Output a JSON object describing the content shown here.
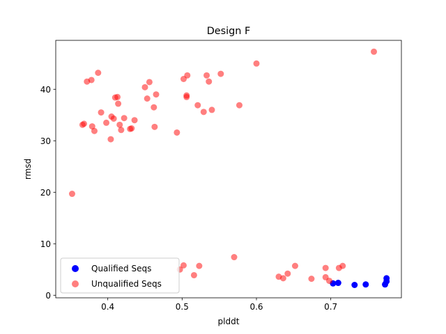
{
  "chart_data": {
    "type": "scatter",
    "title": "Design F",
    "xlabel": "plddt",
    "ylabel": "rmsd",
    "xlim": [
      0.33,
      0.795
    ],
    "ylim": [
      -0.5,
      49.5
    ],
    "xticks": [
      0.4,
      0.5,
      0.6,
      0.7
    ],
    "xtick_labels": [
      "0.4",
      "0.5",
      "0.6",
      "0.7"
    ],
    "yticks": [
      0,
      10,
      20,
      30,
      40
    ],
    "ytick_labels": [
      "0",
      "10",
      "20",
      "30",
      "40"
    ],
    "grid": false,
    "legend_position": "lower-left",
    "series": [
      {
        "name": "Qualified Seqs",
        "color": "#0000ff",
        "alpha": 1.0,
        "points": [
          [
            0.703,
            2.3
          ],
          [
            0.71,
            2.4
          ],
          [
            0.732,
            2.0
          ],
          [
            0.747,
            2.1
          ],
          [
            0.773,
            2.1
          ],
          [
            0.775,
            3.3
          ],
          [
            0.775,
            2.7
          ]
        ]
      },
      {
        "name": "Unqualified Seqs",
        "color": "#ff0000",
        "alpha": 0.5,
        "points": [
          [
            0.352,
            19.7
          ],
          [
            0.366,
            33.1
          ],
          [
            0.368,
            33.3
          ],
          [
            0.372,
            41.5
          ],
          [
            0.378,
            41.8
          ],
          [
            0.379,
            32.8
          ],
          [
            0.382,
            31.9
          ],
          [
            0.387,
            43.2
          ],
          [
            0.391,
            35.5
          ],
          [
            0.398,
            33.5
          ],
          [
            0.404,
            30.3
          ],
          [
            0.405,
            34.7
          ],
          [
            0.408,
            34.3
          ],
          [
            0.41,
            38.4
          ],
          [
            0.413,
            38.5
          ],
          [
            0.414,
            37.2
          ],
          [
            0.416,
            33.1
          ],
          [
            0.418,
            32.1
          ],
          [
            0.422,
            34.4
          ],
          [
            0.43,
            32.3
          ],
          [
            0.432,
            32.4
          ],
          [
            0.436,
            34.0
          ],
          [
            0.45,
            40.4
          ],
          [
            0.453,
            38.2
          ],
          [
            0.456,
            41.4
          ],
          [
            0.462,
            36.5
          ],
          [
            0.463,
            32.7
          ],
          [
            0.465,
            39.0
          ],
          [
            0.493,
            31.6
          ],
          [
            0.497,
            5.0
          ],
          [
            0.502,
            42.0
          ],
          [
            0.502,
            5.8
          ],
          [
            0.506,
            38.8
          ],
          [
            0.506,
            38.5
          ],
          [
            0.507,
            42.7
          ],
          [
            0.516,
            3.9
          ],
          [
            0.521,
            36.9
          ],
          [
            0.523,
            5.7
          ],
          [
            0.529,
            35.6
          ],
          [
            0.533,
            42.7
          ],
          [
            0.536,
            41.5
          ],
          [
            0.54,
            36.0
          ],
          [
            0.552,
            43.0
          ],
          [
            0.57,
            7.4
          ],
          [
            0.577,
            36.9
          ],
          [
            0.6,
            45.0
          ],
          [
            0.63,
            3.6
          ],
          [
            0.636,
            3.3
          ],
          [
            0.642,
            4.2
          ],
          [
            0.652,
            5.7
          ],
          [
            0.674,
            3.2
          ],
          [
            0.693,
            5.3
          ],
          [
            0.693,
            3.5
          ],
          [
            0.698,
            2.8
          ],
          [
            0.711,
            5.3
          ],
          [
            0.716,
            5.7
          ],
          [
            0.758,
            47.3
          ]
        ]
      }
    ]
  }
}
